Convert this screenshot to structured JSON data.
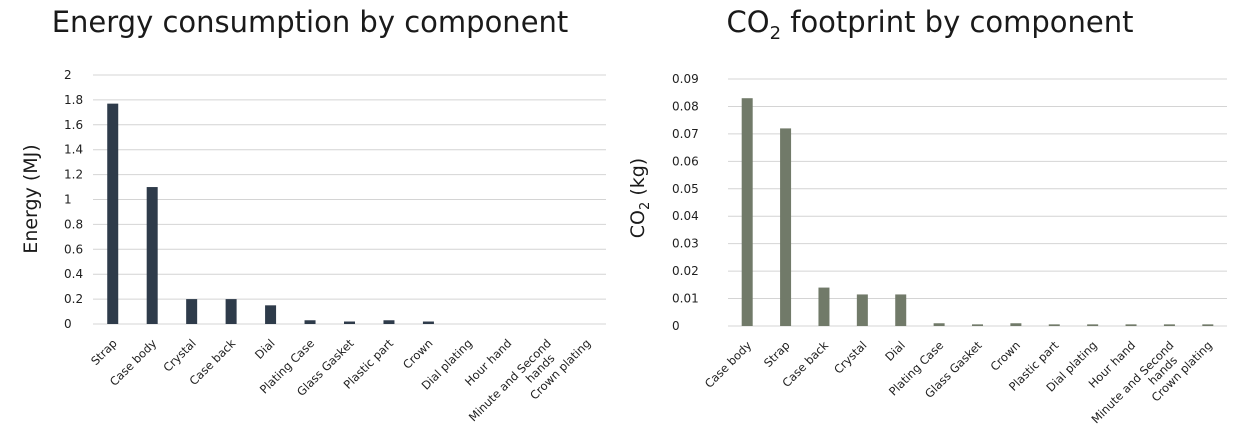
{
  "chart_data": [
    {
      "type": "bar",
      "title": "Energy consumption by component",
      "xlabel": "",
      "ylabel": "Energy (MJ)",
      "ylim": [
        0,
        2
      ],
      "yticks": [
        "0",
        "0.2",
        "0.4",
        "0.6",
        "0.8",
        "1",
        "1.2",
        "1.4",
        "1.6",
        "1.8",
        "2"
      ],
      "grid": true,
      "color": "#2e3b4a",
      "categories": [
        "Strap",
        "Case body",
        "Crystal",
        "Case back",
        "Dial",
        "Plating Case",
        "Glass Gasket",
        "Plastic part",
        "Crown",
        "Dial plating",
        "Hour hand",
        "Minute and Second hands",
        "Crown plating"
      ],
      "values": [
        1.77,
        1.1,
        0.2,
        0.2,
        0.15,
        0.03,
        0.02,
        0.03,
        0.02,
        0.0,
        0.0,
        0.0,
        0.0
      ]
    },
    {
      "type": "bar",
      "title": "CO2 footprint by component",
      "xlabel": "",
      "ylabel": "CO2 (kg)",
      "ylim": [
        0,
        0.09
      ],
      "yticks": [
        "0",
        "0.01",
        "0.02",
        "0.03",
        "0.04",
        "0.05",
        "0.06",
        "0.07",
        "0.08",
        "0.09"
      ],
      "grid": true,
      "color": "#717a69",
      "categories": [
        "Case body",
        "Strap",
        "Case back",
        "Crystal",
        "Dial",
        "Plating Case",
        "Glass Gasket",
        "Crown",
        "Plastic part",
        "Dial plating",
        "Hour hand",
        "Minute and Second hands",
        "Crown plating"
      ],
      "values": [
        0.083,
        0.072,
        0.014,
        0.0115,
        0.0115,
        0.001,
        0.0006,
        0.001,
        0.0006,
        0.0006,
        0.0006,
        0.0006,
        0.0006
      ]
    }
  ]
}
